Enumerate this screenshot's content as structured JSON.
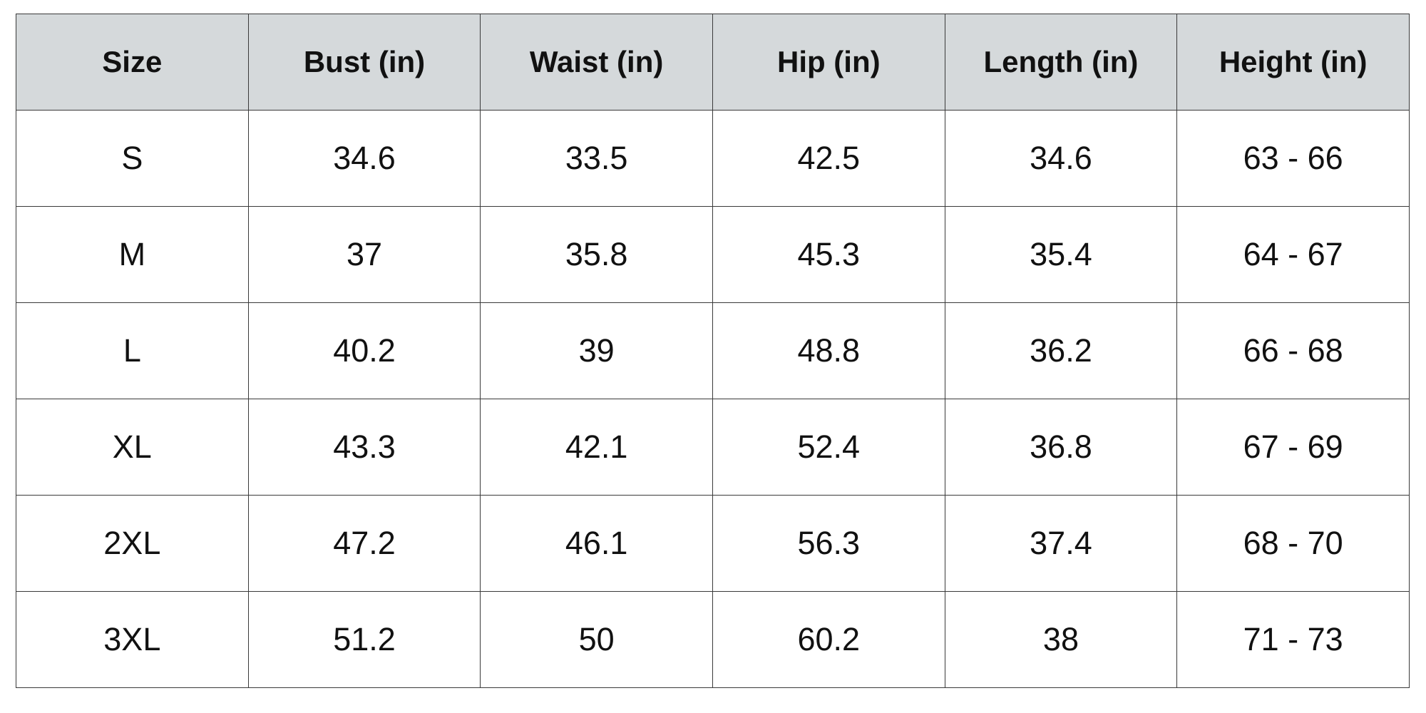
{
  "table": {
    "header": [
      "Size",
      "Bust (in)",
      "Waist (in)",
      "Hip (in)",
      "Length (in)",
      "Height (in)"
    ],
    "rows": [
      [
        "S",
        "34.6",
        "33.5",
        "42.5",
        "34.6",
        "63 - 66"
      ],
      [
        "M",
        "37",
        "35.8",
        "45.3",
        "35.4",
        "64 - 67"
      ],
      [
        "L",
        "40.2",
        "39",
        "48.8",
        "36.2",
        "66 - 68"
      ],
      [
        "XL",
        "43.3",
        "42.1",
        "52.4",
        "36.8",
        "67 - 69"
      ],
      [
        "2XL",
        "47.2",
        "46.1",
        "56.3",
        "37.4",
        "68 - 70"
      ],
      [
        "3XL",
        "51.2",
        "50",
        "60.2",
        "38",
        "71 - 73"
      ]
    ]
  }
}
